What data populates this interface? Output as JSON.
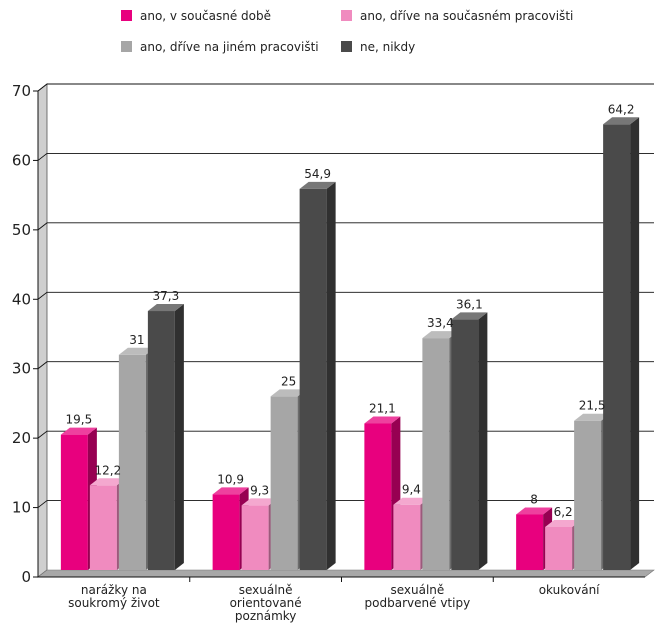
{
  "chart_data": {
    "type": "bar",
    "categories": [
      [
        "narážky na",
        "soukromý život"
      ],
      [
        "sexuálně",
        "orientované",
        "poznámky"
      ],
      [
        "sexuálně",
        "podbarvené vtipy"
      ],
      [
        "okukování"
      ]
    ],
    "series": [
      {
        "name": "ano, v současné době",
        "color": "#e8007e",
        "values": [
          19.5,
          10.9,
          21.1,
          8
        ]
      },
      {
        "name": "ano, dříve na současném pracovišti",
        "color": "#f08bbf",
        "values": [
          12.2,
          9.3,
          9.4,
          6.2
        ]
      },
      {
        "name": "ano, dříve na jiném pracovišti",
        "color": "#a6a6a6",
        "values": [
          31,
          25,
          33.4,
          21.5
        ]
      },
      {
        "name": "ne, nikdy",
        "color": "#4a4a4a",
        "values": [
          37.3,
          54.9,
          36.1,
          64.2
        ]
      }
    ],
    "value_labels": [
      [
        "19,5",
        "10,9",
        "21,1",
        "8"
      ],
      [
        "12,2",
        "9,3",
        "9,4",
        "6,2"
      ],
      [
        "31",
        "25",
        "33,4",
        "21,5"
      ],
      [
        "37,3",
        "54,9",
        "36,1",
        "64,2"
      ]
    ],
    "yticks": [
      0,
      10,
      20,
      30,
      40,
      50,
      60,
      70
    ],
    "ylim": [
      0,
      70
    ],
    "grid": true,
    "legend_position": "top",
    "title": "",
    "xlabel": "",
    "ylabel": ""
  }
}
